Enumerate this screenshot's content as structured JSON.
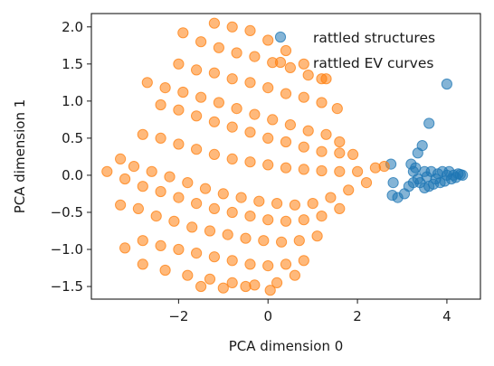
{
  "chart_data": {
    "type": "scatter",
    "title": "",
    "xlabel": "PCA dimension 0",
    "ylabel": "PCA dimension 1",
    "xlim": [
      -3.95,
      4.75
    ],
    "ylim": [
      -1.67,
      2.18
    ],
    "xticks": [
      -2,
      0,
      2,
      4
    ],
    "yticks": [
      -1.5,
      -1.0,
      -0.5,
      0.0,
      0.5,
      1.0,
      1.5,
      2.0
    ],
    "grid": false,
    "legend_position": "top-right",
    "series": [
      {
        "name": "rattled structures",
        "color": "#1f77b4",
        "points": [
          [
            4.0,
            1.23
          ],
          [
            3.6,
            0.7
          ],
          [
            3.45,
            0.4
          ],
          [
            3.35,
            0.3
          ],
          [
            3.2,
            0.15
          ],
          [
            2.75,
            0.15
          ],
          [
            2.8,
            -0.1
          ],
          [
            2.78,
            -0.27
          ],
          [
            2.9,
            -0.3
          ],
          [
            3.05,
            -0.25
          ],
          [
            3.15,
            -0.15
          ],
          [
            3.25,
            -0.1
          ],
          [
            3.25,
            0.05
          ],
          [
            3.3,
            0.1
          ],
          [
            3.4,
            -0.1
          ],
          [
            3.5,
            -0.17
          ],
          [
            3.5,
            0.05
          ],
          [
            3.6,
            -0.15
          ],
          [
            3.65,
            0.05
          ],
          [
            3.7,
            -0.12
          ],
          [
            3.8,
            0.02
          ],
          [
            3.85,
            -0.1
          ],
          [
            3.9,
            0.05
          ],
          [
            3.95,
            -0.08
          ],
          [
            4.0,
            0.0
          ],
          [
            4.05,
            0.05
          ],
          [
            4.1,
            -0.05
          ],
          [
            4.15,
            0.0
          ],
          [
            4.2,
            -0.03
          ],
          [
            4.25,
            0.02
          ],
          [
            4.3,
            0.01
          ],
          [
            4.35,
            0.0
          ],
          [
            3.75,
            -0.05
          ],
          [
            3.55,
            -0.02
          ],
          [
            3.35,
            -0.05
          ]
        ]
      },
      {
        "name": "rattled EV curves",
        "color": "#ff7f0e",
        "points": [
          [
            -1.2,
            2.05
          ],
          [
            -0.8,
            2.0
          ],
          [
            -0.4,
            1.95
          ],
          [
            0.0,
            1.82
          ],
          [
            0.4,
            1.68
          ],
          [
            0.8,
            1.5
          ],
          [
            1.2,
            1.3
          ],
          [
            -1.9,
            1.92
          ],
          [
            -1.5,
            1.8
          ],
          [
            -1.1,
            1.72
          ],
          [
            -0.7,
            1.65
          ],
          [
            -0.3,
            1.6
          ],
          [
            0.1,
            1.52
          ],
          [
            0.5,
            1.45
          ],
          [
            0.9,
            1.35
          ],
          [
            1.3,
            1.3
          ],
          [
            -2.0,
            1.5
          ],
          [
            -1.6,
            1.42
          ],
          [
            -1.2,
            1.38
          ],
          [
            -0.8,
            1.3
          ],
          [
            -0.4,
            1.25
          ],
          [
            0.0,
            1.18
          ],
          [
            0.4,
            1.1
          ],
          [
            0.8,
            1.05
          ],
          [
            1.2,
            0.98
          ],
          [
            1.55,
            0.9
          ],
          [
            -2.7,
            1.25
          ],
          [
            -2.3,
            1.18
          ],
          [
            -1.9,
            1.12
          ],
          [
            -1.5,
            1.05
          ],
          [
            -1.1,
            0.98
          ],
          [
            -0.7,
            0.9
          ],
          [
            -0.3,
            0.82
          ],
          [
            0.1,
            0.75
          ],
          [
            0.5,
            0.68
          ],
          [
            0.9,
            0.6
          ],
          [
            1.3,
            0.55
          ],
          [
            1.6,
            0.45
          ],
          [
            -2.4,
            0.95
          ],
          [
            -2.0,
            0.88
          ],
          [
            -1.6,
            0.8
          ],
          [
            -1.2,
            0.72
          ],
          [
            -0.8,
            0.65
          ],
          [
            -0.4,
            0.58
          ],
          [
            0.0,
            0.5
          ],
          [
            0.4,
            0.45
          ],
          [
            0.8,
            0.38
          ],
          [
            1.2,
            0.32
          ],
          [
            1.6,
            0.3
          ],
          [
            1.9,
            0.28
          ],
          [
            -2.8,
            0.55
          ],
          [
            -2.4,
            0.5
          ],
          [
            -2.0,
            0.42
          ],
          [
            -1.6,
            0.35
          ],
          [
            -1.2,
            0.28
          ],
          [
            -0.8,
            0.22
          ],
          [
            -0.4,
            0.18
          ],
          [
            0.0,
            0.14
          ],
          [
            0.4,
            0.1
          ],
          [
            0.8,
            0.08
          ],
          [
            1.2,
            0.06
          ],
          [
            1.6,
            0.05
          ],
          [
            2.0,
            0.05
          ],
          [
            2.4,
            0.1
          ],
          [
            2.6,
            0.12
          ],
          [
            -3.3,
            0.22
          ],
          [
            -3.0,
            0.12
          ],
          [
            -2.6,
            0.05
          ],
          [
            -2.2,
            -0.02
          ],
          [
            -1.8,
            -0.1
          ],
          [
            -1.4,
            -0.18
          ],
          [
            -1.0,
            -0.25
          ],
          [
            -0.6,
            -0.3
          ],
          [
            -0.2,
            -0.35
          ],
          [
            0.2,
            -0.38
          ],
          [
            0.6,
            -0.4
          ],
          [
            1.0,
            -0.38
          ],
          [
            1.4,
            -0.3
          ],
          [
            1.8,
            -0.2
          ],
          [
            2.2,
            -0.1
          ],
          [
            -3.6,
            0.05
          ],
          [
            -3.2,
            -0.05
          ],
          [
            -2.8,
            -0.15
          ],
          [
            -2.4,
            -0.22
          ],
          [
            -2.0,
            -0.3
          ],
          [
            -1.6,
            -0.38
          ],
          [
            -1.2,
            -0.45
          ],
          [
            -0.8,
            -0.5
          ],
          [
            -0.4,
            -0.55
          ],
          [
            0.0,
            -0.6
          ],
          [
            0.4,
            -0.62
          ],
          [
            0.8,
            -0.6
          ],
          [
            1.2,
            -0.55
          ],
          [
            1.6,
            -0.45
          ],
          [
            -3.3,
            -0.4
          ],
          [
            -2.9,
            -0.45
          ],
          [
            -2.5,
            -0.55
          ],
          [
            -2.1,
            -0.62
          ],
          [
            -1.7,
            -0.7
          ],
          [
            -1.3,
            -0.75
          ],
          [
            -0.9,
            -0.8
          ],
          [
            -0.5,
            -0.85
          ],
          [
            -0.1,
            -0.88
          ],
          [
            0.3,
            -0.9
          ],
          [
            0.7,
            -0.88
          ],
          [
            1.1,
            -0.82
          ],
          [
            -3.2,
            -0.98
          ],
          [
            -2.8,
            -0.88
          ],
          [
            -2.4,
            -0.95
          ],
          [
            -2.0,
            -1.0
          ],
          [
            -1.6,
            -1.05
          ],
          [
            -1.2,
            -1.1
          ],
          [
            -0.8,
            -1.15
          ],
          [
            -0.4,
            -1.2
          ],
          [
            0.0,
            -1.22
          ],
          [
            0.4,
            -1.2
          ],
          [
            0.8,
            -1.15
          ],
          [
            -2.8,
            -1.2
          ],
          [
            -2.3,
            -1.28
          ],
          [
            -1.8,
            -1.35
          ],
          [
            -1.3,
            -1.4
          ],
          [
            -0.8,
            -1.45
          ],
          [
            -0.3,
            -1.48
          ],
          [
            0.2,
            -1.45
          ],
          [
            0.6,
            -1.35
          ],
          [
            -1.5,
            -1.5
          ],
          [
            -1.0,
            -1.52
          ],
          [
            -0.5,
            -1.5
          ],
          [
            0.05,
            -1.55
          ]
        ]
      }
    ]
  }
}
